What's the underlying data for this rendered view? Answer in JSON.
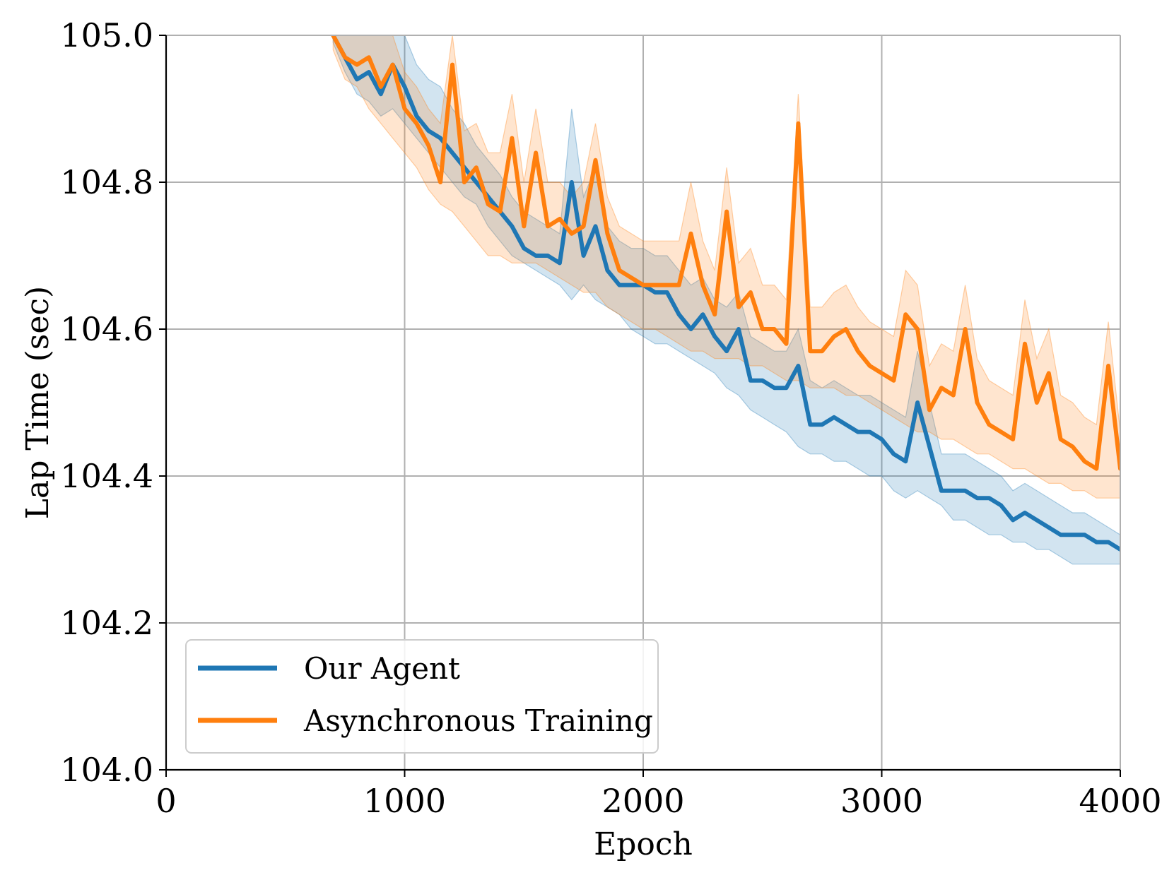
{
  "chart_data": {
    "type": "line",
    "title": "",
    "xlabel": "Epoch",
    "ylabel": "Lap Time (sec)",
    "xlim": [
      0,
      4000
    ],
    "ylim": [
      104.0,
      105.0
    ],
    "xticks": [
      0,
      1000,
      2000,
      3000,
      4000
    ],
    "xtick_labels": [
      "0",
      "1000",
      "2000",
      "3000",
      "4000"
    ],
    "yticks": [
      104.0,
      104.2,
      104.4,
      104.6,
      104.8,
      105.0
    ],
    "ytick_labels": [
      "104.0",
      "104.2",
      "104.4",
      "104.6",
      "104.8",
      "105.0"
    ],
    "grid": true,
    "legend_position": "lower-left",
    "series": [
      {
        "name": "Our Agent",
        "color": "#1f77b4",
        "band": "shaded",
        "x": [
          700,
          750,
          800,
          850,
          900,
          950,
          1000,
          1050,
          1100,
          1150,
          1200,
          1250,
          1300,
          1350,
          1400,
          1450,
          1500,
          1550,
          1600,
          1650,
          1700,
          1750,
          1800,
          1850,
          1900,
          1950,
          2000,
          2050,
          2100,
          2150,
          2200,
          2250,
          2300,
          2350,
          2400,
          2450,
          2500,
          2550,
          2600,
          2650,
          2700,
          2750,
          2800,
          2850,
          2900,
          2950,
          3000,
          3050,
          3100,
          3150,
          3200,
          3250,
          3300,
          3350,
          3400,
          3450,
          3500,
          3550,
          3600,
          3650,
          3700,
          3750,
          3800,
          3850,
          3900,
          3950,
          4000
        ],
        "y": [
          105.0,
          104.97,
          104.94,
          104.95,
          104.92,
          104.96,
          104.93,
          104.89,
          104.87,
          104.86,
          104.84,
          104.82,
          104.8,
          104.78,
          104.76,
          104.74,
          104.71,
          104.7,
          104.7,
          104.69,
          104.8,
          104.7,
          104.74,
          104.68,
          104.66,
          104.66,
          104.66,
          104.65,
          104.65,
          104.62,
          104.6,
          104.62,
          104.59,
          104.57,
          104.6,
          104.53,
          104.53,
          104.52,
          104.52,
          104.55,
          104.47,
          104.47,
          104.48,
          104.47,
          104.46,
          104.46,
          104.45,
          104.43,
          104.42,
          104.5,
          104.44,
          104.38,
          104.38,
          104.38,
          104.37,
          104.37,
          104.36,
          104.34,
          104.35,
          104.34,
          104.33,
          104.32,
          104.32,
          104.32,
          104.31,
          104.31,
          104.3
        ],
        "lower": [
          104.99,
          104.95,
          104.92,
          104.91,
          104.89,
          104.9,
          104.88,
          104.86,
          104.84,
          104.82,
          104.8,
          104.78,
          104.77,
          104.74,
          104.72,
          104.7,
          104.69,
          104.68,
          104.67,
          104.66,
          104.64,
          104.66,
          104.64,
          104.63,
          104.62,
          104.6,
          104.59,
          104.58,
          104.58,
          104.57,
          104.56,
          104.55,
          104.54,
          104.52,
          104.51,
          104.49,
          104.48,
          104.47,
          104.46,
          104.44,
          104.43,
          104.43,
          104.42,
          104.42,
          104.41,
          104.4,
          104.4,
          104.38,
          104.37,
          104.38,
          104.37,
          104.36,
          104.34,
          104.34,
          104.33,
          104.32,
          104.32,
          104.31,
          104.31,
          104.3,
          104.3,
          104.29,
          104.28,
          104.28,
          104.28,
          104.28,
          104.28
        ],
        "upper": [
          105.0,
          105.0,
          105.0,
          105.0,
          105.0,
          105.0,
          105.0,
          104.96,
          104.94,
          104.93,
          104.9,
          104.88,
          104.85,
          104.83,
          104.81,
          104.78,
          104.76,
          104.75,
          104.74,
          104.73,
          104.9,
          104.78,
          104.82,
          104.74,
          104.72,
          104.71,
          104.71,
          104.7,
          104.7,
          104.68,
          104.66,
          104.67,
          104.64,
          104.63,
          104.65,
          104.59,
          104.58,
          104.57,
          104.57,
          104.6,
          104.53,
          104.52,
          104.53,
          104.52,
          104.51,
          104.51,
          104.5,
          104.49,
          104.48,
          104.57,
          104.5,
          104.43,
          104.43,
          104.43,
          104.42,
          104.41,
          104.4,
          104.38,
          104.39,
          104.38,
          104.37,
          104.36,
          104.35,
          104.35,
          104.34,
          104.33,
          104.32
        ]
      },
      {
        "name": "Asynchronous Training",
        "color": "#ff7f0e",
        "band": "shaded",
        "x": [
          700,
          750,
          800,
          850,
          900,
          950,
          1000,
          1050,
          1100,
          1150,
          1200,
          1250,
          1300,
          1350,
          1400,
          1450,
          1500,
          1550,
          1600,
          1650,
          1700,
          1750,
          1800,
          1850,
          1900,
          1950,
          2000,
          2050,
          2100,
          2150,
          2200,
          2250,
          2300,
          2350,
          2400,
          2450,
          2500,
          2550,
          2600,
          2650,
          2700,
          2750,
          2800,
          2850,
          2900,
          2950,
          3000,
          3050,
          3100,
          3150,
          3200,
          3250,
          3300,
          3350,
          3400,
          3450,
          3500,
          3550,
          3600,
          3650,
          3700,
          3750,
          3800,
          3850,
          3900,
          3950,
          4000
        ],
        "y": [
          105.0,
          104.97,
          104.96,
          104.97,
          104.93,
          104.96,
          104.9,
          104.88,
          104.85,
          104.8,
          104.96,
          104.8,
          104.82,
          104.77,
          104.76,
          104.86,
          104.74,
          104.84,
          104.74,
          104.75,
          104.73,
          104.74,
          104.83,
          104.73,
          104.68,
          104.67,
          104.66,
          104.66,
          104.66,
          104.66,
          104.73,
          104.66,
          104.62,
          104.76,
          104.63,
          104.65,
          104.6,
          104.6,
          104.58,
          104.88,
          104.57,
          104.57,
          104.59,
          104.6,
          104.57,
          104.55,
          104.54,
          104.53,
          104.62,
          104.6,
          104.49,
          104.52,
          104.51,
          104.6,
          104.5,
          104.47,
          104.46,
          104.45,
          104.58,
          104.5,
          104.54,
          104.45,
          104.44,
          104.42,
          104.41,
          104.55,
          104.41
        ],
        "lower": [
          104.98,
          104.94,
          104.93,
          104.9,
          104.88,
          104.86,
          104.84,
          104.82,
          104.79,
          104.77,
          104.76,
          104.74,
          104.72,
          104.7,
          104.7,
          104.69,
          104.69,
          104.69,
          104.68,
          104.67,
          104.66,
          104.65,
          104.65,
          104.63,
          104.62,
          104.61,
          104.6,
          104.6,
          104.59,
          104.58,
          104.57,
          104.57,
          104.56,
          104.56,
          104.56,
          104.55,
          104.55,
          104.54,
          104.53,
          104.53,
          104.52,
          104.52,
          104.52,
          104.51,
          104.51,
          104.5,
          104.49,
          104.48,
          104.47,
          104.46,
          104.46,
          104.45,
          104.45,
          104.44,
          104.43,
          104.43,
          104.42,
          104.41,
          104.41,
          104.4,
          104.39,
          104.39,
          104.38,
          104.38,
          104.37,
          104.37,
          104.37
        ],
        "upper": [
          105.0,
          105.0,
          105.0,
          105.0,
          105.0,
          105.0,
          104.95,
          104.93,
          104.9,
          104.88,
          105.0,
          104.87,
          104.88,
          104.84,
          104.84,
          104.92,
          104.8,
          104.9,
          104.8,
          104.8,
          104.78,
          104.8,
          104.88,
          104.78,
          104.74,
          104.73,
          104.72,
          104.72,
          104.72,
          104.72,
          104.8,
          104.72,
          104.68,
          104.82,
          104.69,
          104.71,
          104.66,
          104.66,
          104.64,
          104.92,
          104.63,
          104.63,
          104.65,
          104.66,
          104.63,
          104.61,
          104.6,
          104.59,
          104.68,
          104.66,
          104.55,
          104.58,
          104.57,
          104.66,
          104.56,
          104.53,
          104.52,
          104.51,
          104.64,
          104.56,
          104.6,
          104.51,
          104.5,
          104.48,
          104.47,
          104.61,
          104.46
        ]
      }
    ]
  }
}
